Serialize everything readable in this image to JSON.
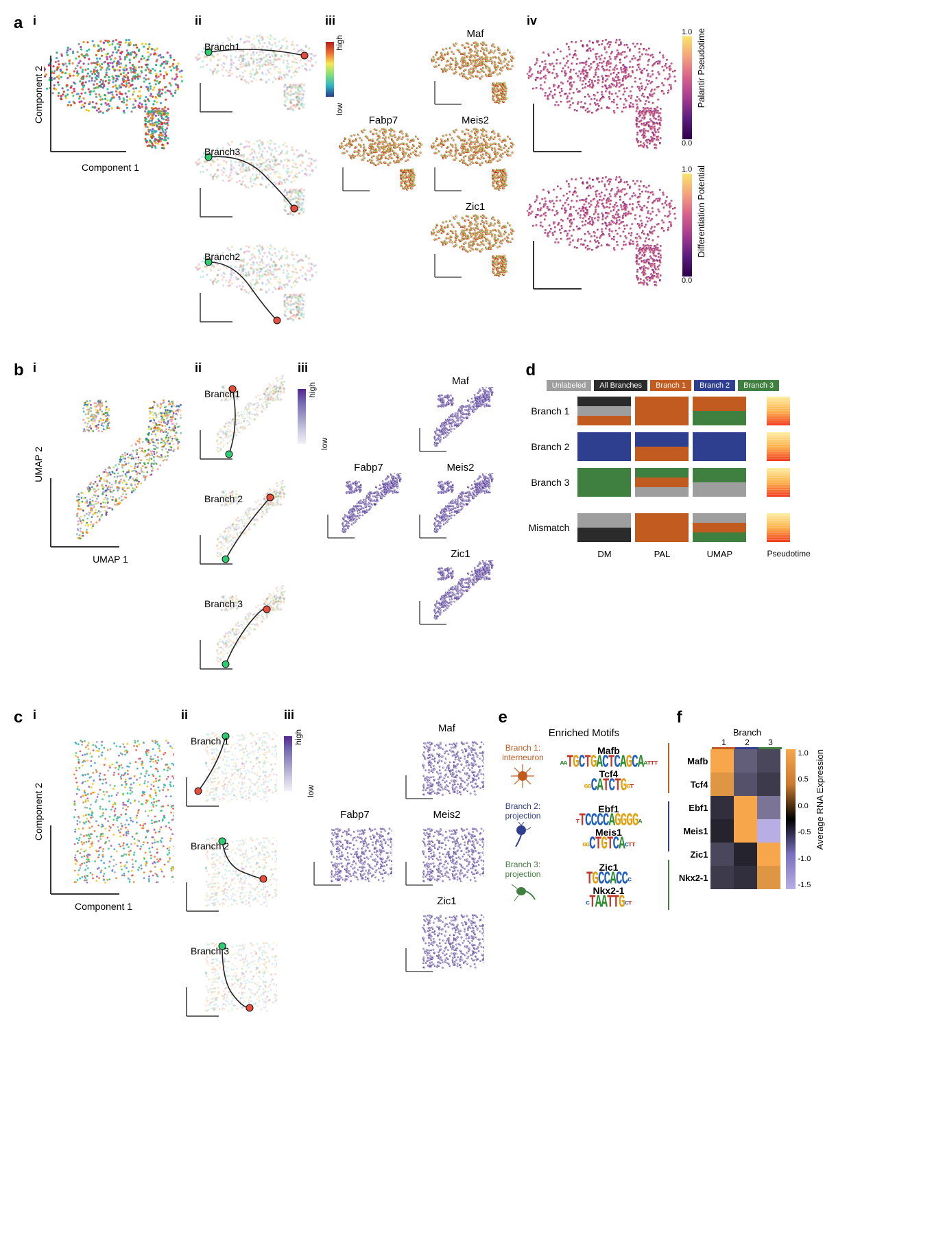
{
  "panels": {
    "a": {
      "label": "a",
      "subs": [
        "i",
        "ii",
        "iii",
        "iv"
      ],
      "axes": {
        "x": "Component 1",
        "y": "Component 2"
      },
      "branches": [
        "Branch1",
        "Branch3",
        "Branch2"
      ],
      "genes": [
        "Maf",
        "Fabp7",
        "Meis2",
        "Zic1"
      ],
      "expr_colorbar": {
        "low": "low",
        "high": "high",
        "gradient": [
          "#233b8a",
          "#2fb6c3",
          "#7fe07a",
          "#f7e852",
          "#ef6b2f",
          "#b71c1c"
        ]
      },
      "iv_bars": [
        {
          "title": "Palantir Pseudotime",
          "min": "0.0",
          "max": "1.0",
          "gradient": [
            "#2d004b",
            "#5b1d7e",
            "#a43b8f",
            "#d8608a",
            "#f4a27e",
            "#fbe36a"
          ]
        },
        {
          "title": "Differentiation Potential",
          "min": "0.0",
          "max": "1.0",
          "gradient": [
            "#2d004b",
            "#5b1d7e",
            "#a43b8f",
            "#d8608a",
            "#f4a27e",
            "#fbe36a"
          ]
        }
      ],
      "cluster_colors": [
        "#8e44ad",
        "#3498db",
        "#1abc9c",
        "#f1c40f",
        "#e67e22",
        "#e74c3c",
        "#2ecc71",
        "#16a085",
        "#9b59b6",
        "#c0392b",
        "#27ae60",
        "#d35400",
        "#7f8c8d",
        "#e91e63"
      ]
    },
    "b": {
      "label": "b",
      "subs": [
        "i",
        "ii",
        "iii"
      ],
      "axes": {
        "x": "UMAP 1",
        "y": "UMAP 2"
      },
      "branches": [
        "Branch1",
        "Branch 2",
        "Branch 3"
      ],
      "genes": [
        "Maf",
        "Fabp7",
        "Meis2",
        "Zic1"
      ],
      "expr_colorbar": {
        "low": "low",
        "high": "high",
        "gradient": [
          "#f2f0f7",
          "#cbc9e2",
          "#9e9ac8",
          "#756bb1",
          "#54278f"
        ]
      },
      "cluster_colors": [
        "#66c2a5",
        "#fc8d62",
        "#8da0cb",
        "#e78ac3",
        "#a6d854",
        "#ffd92f",
        "#e5c494",
        "#b3b3b3",
        "#1f78b4",
        "#33a02c",
        "#6a3d9a",
        "#ff7f00"
      ]
    },
    "c": {
      "label": "c",
      "subs": [
        "i",
        "ii",
        "iii"
      ],
      "axes": {
        "x": "Component 1",
        "y": "Component 2"
      },
      "branches": [
        "Branch 1",
        "Branch 2",
        "Branch 3"
      ],
      "genes": [
        "Maf",
        "Fabp7",
        "Meis2",
        "Zic1"
      ],
      "expr_colorbar": {
        "low": "low",
        "high": "high",
        "gradient": [
          "#f2f0f7",
          "#cbc9e2",
          "#9e9ac8",
          "#756bb1",
          "#54278f"
        ]
      },
      "cluster_colors": [
        "#2ecc71",
        "#e67e22",
        "#3498db",
        "#e74c3c",
        "#f1c40f",
        "#9b59b6",
        "#1abc9c",
        "#95a5a6"
      ]
    },
    "d": {
      "label": "d",
      "legend": [
        {
          "label": "Unlabeled",
          "color": "#9e9e9e"
        },
        {
          "label": "All Branches",
          "color": "#2b2b2b"
        },
        {
          "label": "Branch 1",
          "color": "#c25b1f"
        },
        {
          "label": "Branch 2",
          "color": "#2f3f8f"
        },
        {
          "label": "Branch 3",
          "color": "#3f7f3f"
        }
      ],
      "rows": [
        "Branch 1",
        "Branch 2",
        "Branch 3",
        "Mismatch"
      ],
      "cols": [
        "DM",
        "PAL",
        "UMAP"
      ],
      "pseudotime_label": "Pseudotime",
      "pseudotime_gradient": [
        "#ffeda0",
        "#feb24c",
        "#f03b20"
      ],
      "matrix": [
        [
          [
            "#2b2b2b",
            "#9e9e9e",
            "#c25b1f"
          ],
          [
            "#c25b1f"
          ],
          [
            "#c25b1f",
            "#3f7f3f"
          ]
        ],
        [
          [
            "#2f3f8f"
          ],
          [
            "#2f3f8f",
            "#c25b1f"
          ],
          [
            "#2f3f8f"
          ]
        ],
        [
          [
            "#3f7f3f"
          ],
          [
            "#3f7f3f",
            "#c25b1f",
            "#9e9e9e"
          ],
          [
            "#3f7f3f",
            "#9e9e9e"
          ]
        ],
        [
          [
            "#9e9e9e",
            "#2b2b2b"
          ],
          [
            "#c25b1f"
          ],
          [
            "#9e9e9e",
            "#c25b1f",
            "#3f7f3f"
          ]
        ]
      ]
    },
    "e": {
      "label": "e",
      "title": "Enriched Motifs",
      "groups": [
        {
          "name": "Branch 1:",
          "sub": "interneuron",
          "color": "#c25b1f",
          "motifs": [
            {
              "gene": "Mafb",
              "seq": "aaTGCTGACTCAGCAattt"
            },
            {
              "gene": "Tcf4",
              "seq": "ggCATCTGgt"
            }
          ]
        },
        {
          "name": "Branch 2:",
          "sub": "projection",
          "color": "#2f3f8f",
          "motifs": [
            {
              "gene": "Ebf1",
              "seq": "tTCCCCAGGGGa"
            },
            {
              "gene": "Meis1",
              "seq": "ggCTGTCActt"
            }
          ]
        },
        {
          "name": "Branch 3:",
          "sub": "projection",
          "color": "#3f7f3f",
          "motifs": [
            {
              "gene": "Zic1",
              "seq": "TGCCACCc"
            },
            {
              "gene": "Nkx2-1",
              "seq": "cTAATTGct"
            }
          ]
        }
      ]
    },
    "f": {
      "label": "f",
      "col_header": "Branch",
      "cols": [
        "1",
        "2",
        "3"
      ],
      "col_colors": [
        "#c25b1f",
        "#2f3f8f",
        "#3f7f3f"
      ],
      "rows": [
        "Mafb",
        "Tcf4",
        "Ebf1",
        "Meis1",
        "Zic1",
        "Nkx2-1"
      ],
      "values": [
        [
          1.0,
          -0.8,
          -0.6
        ],
        [
          0.9,
          -0.7,
          -0.5
        ],
        [
          -0.4,
          1.0,
          -1.0
        ],
        [
          -0.3,
          1.0,
          -1.5
        ],
        [
          -0.6,
          -0.3,
          1.0
        ],
        [
          -0.5,
          -0.4,
          0.9
        ]
      ],
      "colorbar": {
        "label": "Average RNA Expression",
        "ticks": [
          "1.0",
          "0.5",
          "0.0",
          "-0.5",
          "-1.0",
          "-1.5"
        ],
        "gradient": [
          "#f7a64c",
          "#c97a2e",
          "#000000",
          "#7a6fbf",
          "#b8aee3"
        ]
      }
    }
  },
  "traj_colors": {
    "start": "#2ecc71",
    "end": "#e74c3c",
    "line": "#222"
  }
}
